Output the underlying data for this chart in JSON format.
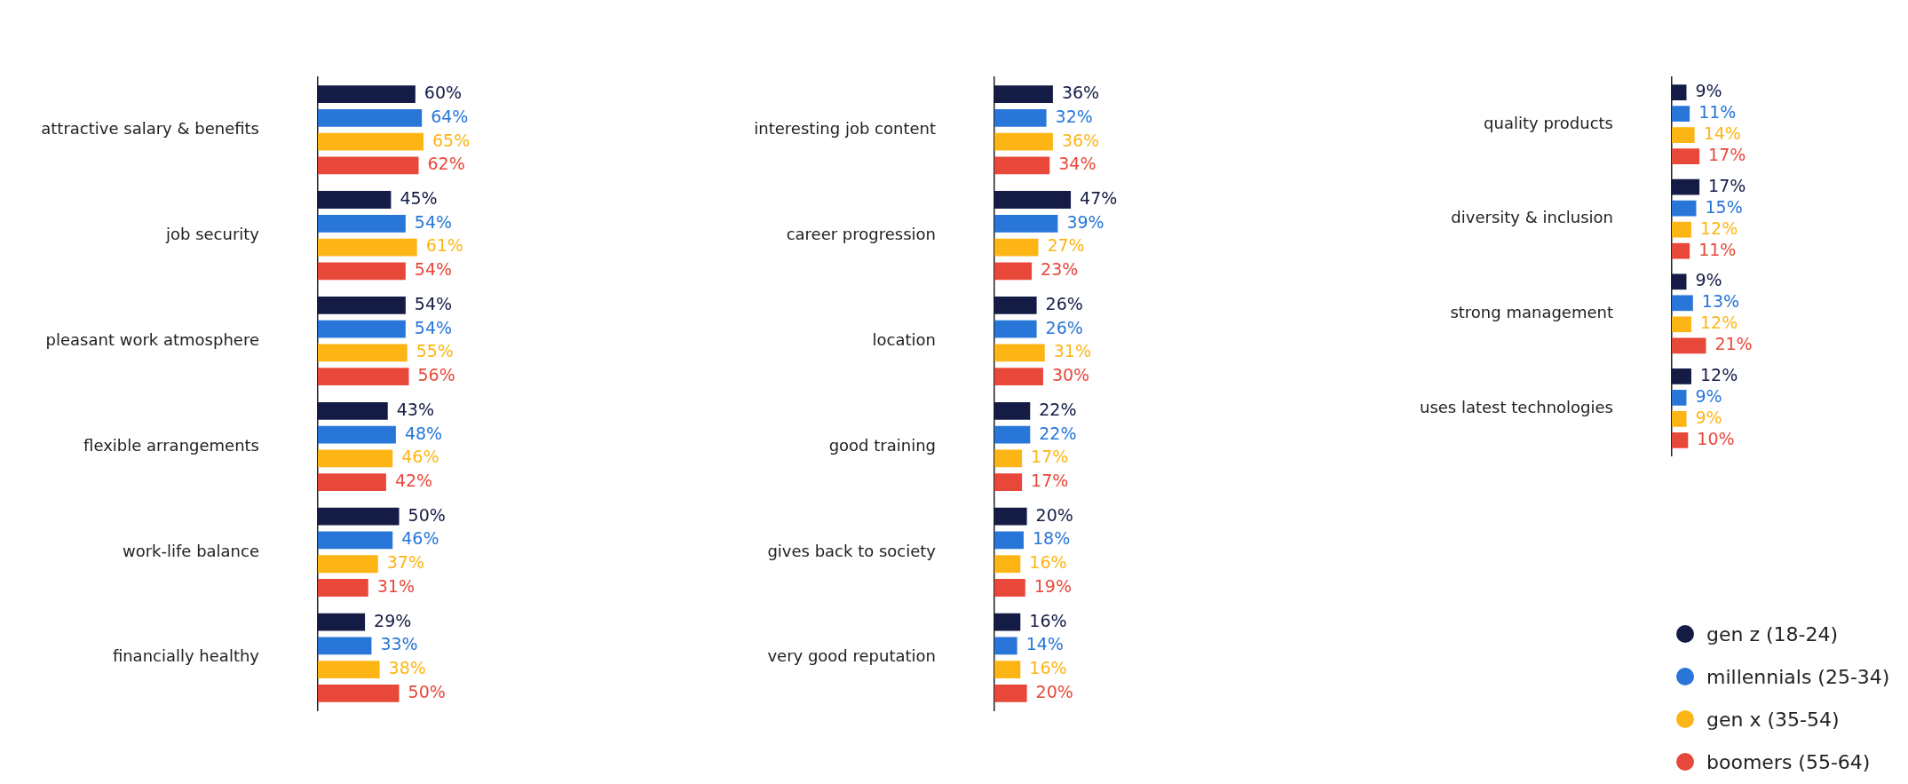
{
  "chart_data": [
    {
      "type": "bar",
      "orientation": "horizontal",
      "categories": [
        "attractive salary & benefits",
        "job security",
        "pleasant work atmosphere",
        "flexible arrangements",
        "work-life balance",
        "financially healthy"
      ],
      "tick_labels": "y",
      "grid": false,
      "legend": false,
      "series": [
        {
          "color": "#141c46",
          "values": [
            60,
            45,
            54,
            43,
            50,
            29
          ],
          "value_labels": [
            "60%",
            "45%",
            "54%",
            "43%",
            "50%",
            "29%"
          ]
        },
        {
          "color": "#2776d8",
          "values": [
            64,
            54,
            54,
            48,
            46,
            33
          ],
          "value_labels": [
            "64%",
            "54%",
            "54%",
            "48%",
            "46%",
            "33%"
          ]
        },
        {
          "color": "#fdb515",
          "values": [
            65,
            61,
            55,
            46,
            37,
            38
          ],
          "value_labels": [
            "65%",
            "61%",
            "55%",
            "46%",
            "37%",
            "38%"
          ]
        },
        {
          "color": "#e8483a",
          "values": [
            62,
            54,
            56,
            42,
            31,
            50
          ],
          "value_labels": [
            "62%",
            "54%",
            "56%",
            "42%",
            "31%",
            "50%"
          ]
        }
      ]
    },
    {
      "type": "bar",
      "orientation": "horizontal",
      "categories": [
        "interesting job content",
        "career progression",
        "location",
        "good training",
        "gives back to society",
        "very good reputation"
      ],
      "tick_labels": "y",
      "grid": false,
      "legend": false,
      "series": [
        {
          "color": "#141c46",
          "values": [
            36,
            47,
            26,
            22,
            20,
            16
          ],
          "value_labels": [
            "36%",
            "47%",
            "26%",
            "22%",
            "20%",
            "16%"
          ]
        },
        {
          "color": "#2776d8",
          "values": [
            32,
            39,
            26,
            22,
            18,
            14
          ],
          "value_labels": [
            "32%",
            "39%",
            "26%",
            "22%",
            "18%",
            "14%"
          ]
        },
        {
          "color": "#fdb515",
          "values": [
            36,
            27,
            31,
            17,
            16,
            16
          ],
          "value_labels": [
            "36%",
            "27%",
            "31%",
            "17%",
            "16%",
            "16%"
          ]
        },
        {
          "color": "#e8483a",
          "values": [
            34,
            23,
            30,
            17,
            19,
            20
          ],
          "value_labels": [
            "34%",
            "23%",
            "30%",
            "17%",
            "19%",
            "20%"
          ]
        }
      ]
    },
    {
      "type": "bar",
      "orientation": "horizontal",
      "categories": [
        "quality products",
        "diversity & inclusion",
        "strong management",
        "uses latest technologies"
      ],
      "tick_labels": "y",
      "grid": false,
      "legend": "bottom right",
      "series": [
        {
          "name": "gen z (18-24)",
          "color": "#141c46",
          "values": [
            9,
            17,
            9,
            12
          ],
          "value_labels": [
            "9%",
            "17%",
            "9%",
            "12%"
          ]
        },
        {
          "name": "millennials (25-34)",
          "color": "#2776d8",
          "values": [
            11,
            15,
            13,
            9
          ],
          "value_labels": [
            "11%",
            "15%",
            "13%",
            "9%"
          ]
        },
        {
          "name": "gen x (35-54)",
          "color": "#fdb515",
          "values": [
            14,
            12,
            12,
            9
          ],
          "value_labels": [
            "14%",
            "12%",
            "12%",
            "9%"
          ]
        },
        {
          "name": "boomers (55-64)",
          "color": "#e8483a",
          "values": [
            17,
            11,
            21,
            10
          ],
          "value_labels": [
            "17%",
            "11%",
            "21%",
            "10%"
          ]
        }
      ]
    }
  ]
}
